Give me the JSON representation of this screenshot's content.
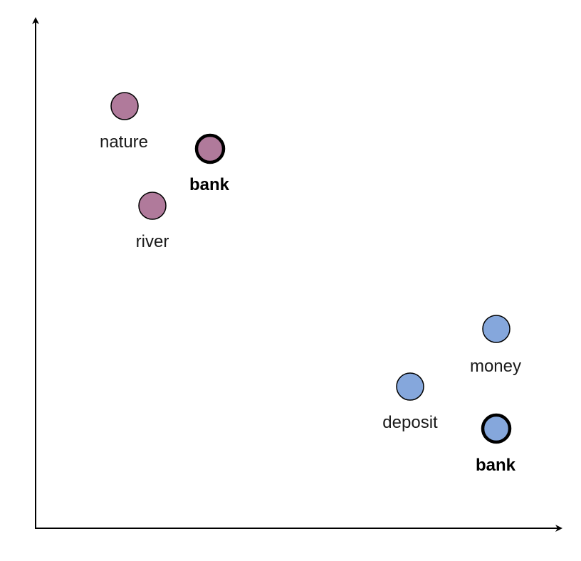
{
  "colors": {
    "cluster_nature": "#b07a9b",
    "cluster_finance": "#85a7dc",
    "axis": "#000000",
    "stroke": "#000000"
  },
  "points": [
    {
      "id": "nature",
      "label": "nature",
      "cluster": "nature",
      "emphasized": false
    },
    {
      "id": "bank-nature",
      "label": "bank",
      "cluster": "nature",
      "emphasized": true
    },
    {
      "id": "river",
      "label": "river",
      "cluster": "nature",
      "emphasized": false
    },
    {
      "id": "money",
      "label": "money",
      "cluster": "finance",
      "emphasized": false
    },
    {
      "id": "deposit",
      "label": "deposit",
      "cluster": "finance",
      "emphasized": false
    },
    {
      "id": "bank-finance",
      "label": "bank",
      "cluster": "finance",
      "emphasized": true
    }
  ]
}
